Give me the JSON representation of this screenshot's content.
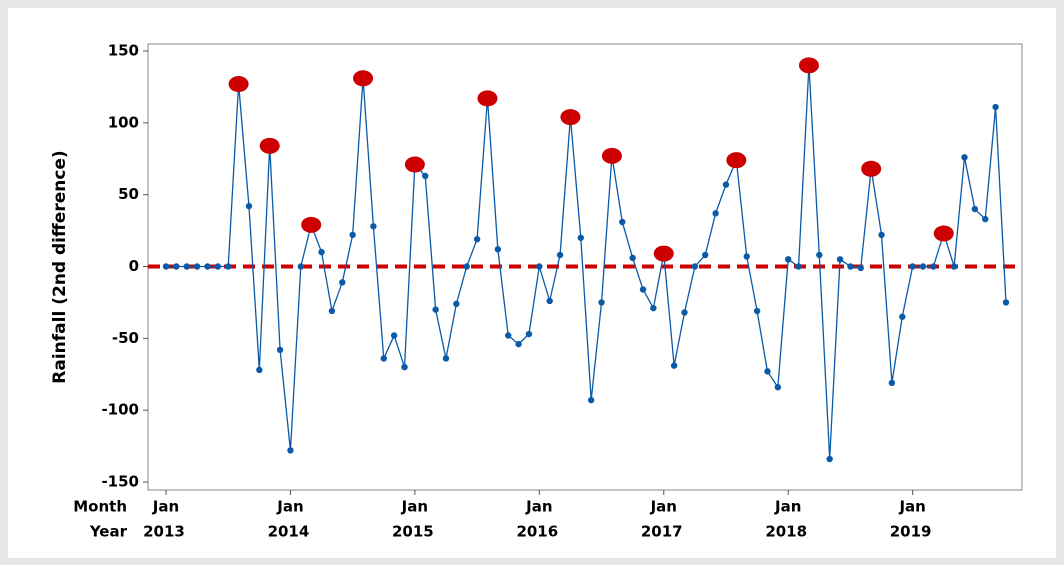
{
  "chart_data": {
    "type": "line",
    "y_label": "Rainfall (2nd difference)",
    "x_row_labels": [
      "Month",
      "Year"
    ],
    "categories": [
      "Jan",
      null,
      null,
      null,
      null,
      null,
      null,
      null,
      null,
      null,
      null,
      null,
      "Jan",
      null,
      null,
      null,
      null,
      null,
      null,
      null,
      null,
      null,
      null,
      null,
      "Jan",
      null,
      null,
      null,
      null,
      null,
      null,
      null,
      null,
      null,
      null,
      null,
      "Jan",
      null,
      null,
      null,
      null,
      null,
      null,
      null,
      null,
      null,
      null,
      null,
      "Jan",
      null,
      null,
      null,
      null,
      null,
      null,
      null,
      null,
      null,
      null,
      null,
      "Jan",
      null,
      null,
      null,
      null,
      null,
      null,
      null,
      null,
      null,
      null,
      null,
      "Jan",
      null,
      null,
      null,
      null,
      null,
      null,
      null,
      null,
      null
    ],
    "years": [
      "2013",
      null,
      null,
      null,
      null,
      null,
      null,
      null,
      null,
      null,
      null,
      null,
      "2014",
      null,
      null,
      null,
      null,
      null,
      null,
      null,
      null,
      null,
      null,
      null,
      "2015",
      null,
      null,
      null,
      null,
      null,
      null,
      null,
      null,
      null,
      null,
      null,
      "2016",
      null,
      null,
      null,
      null,
      null,
      null,
      null,
      null,
      null,
      null,
      null,
      "2017",
      null,
      null,
      null,
      null,
      null,
      null,
      null,
      null,
      null,
      null,
      null,
      "2018",
      null,
      null,
      null,
      null,
      null,
      null,
      null,
      null,
      null,
      null,
      null,
      "2019",
      null,
      null,
      null,
      null,
      null,
      null,
      null,
      null,
      null
    ],
    "series": [
      {
        "color": "#0a5aa8",
        "values": [
          0,
          0,
          0,
          0,
          0,
          0,
          0,
          127,
          42,
          -72,
          84,
          -58,
          -128,
          0,
          29,
          10,
          -31,
          -11,
          22,
          131,
          28,
          -64,
          -48,
          -70,
          71,
          63,
          -30,
          -64,
          -26,
          0,
          19,
          117,
          12,
          -48,
          -54,
          -47,
          0,
          -24,
          8,
          104,
          20,
          -93,
          -25,
          77,
          31,
          6,
          -16,
          -29,
          9,
          -69,
          -32,
          0,
          8,
          37,
          57,
          74,
          7,
          -31,
          -73,
          -84,
          5,
          0,
          140,
          8,
          -134,
          5,
          0,
          -1,
          68,
          22,
          -81,
          -35,
          0,
          0,
          0,
          23,
          0,
          76,
          40,
          33,
          111,
          -25
        ]
      }
    ],
    "highlights": {
      "color": "#cc0000",
      "values": [
        null,
        null,
        null,
        null,
        null,
        null,
        null,
        127,
        null,
        null,
        84,
        null,
        null,
        null,
        29,
        null,
        null,
        null,
        null,
        131,
        null,
        null,
        null,
        null,
        71,
        null,
        null,
        null,
        null,
        null,
        null,
        117,
        null,
        null,
        null,
        null,
        null,
        null,
        null,
        104,
        null,
        null,
        null,
        77,
        null,
        null,
        null,
        null,
        9,
        null,
        null,
        null,
        null,
        null,
        null,
        74,
        null,
        null,
        null,
        null,
        null,
        null,
        140,
        null,
        null,
        null,
        null,
        null,
        68,
        null,
        null,
        null,
        null,
        null,
        null,
        23,
        null,
        null,
        null,
        null,
        null,
        null
      ]
    },
    "reference_line": {
      "value": 0,
      "color": "#cc0000"
    },
    "ylim": [
      -150,
      150
    ],
    "yticks": [
      -150,
      -100,
      -50,
      0,
      50,
      100,
      150
    ]
  }
}
